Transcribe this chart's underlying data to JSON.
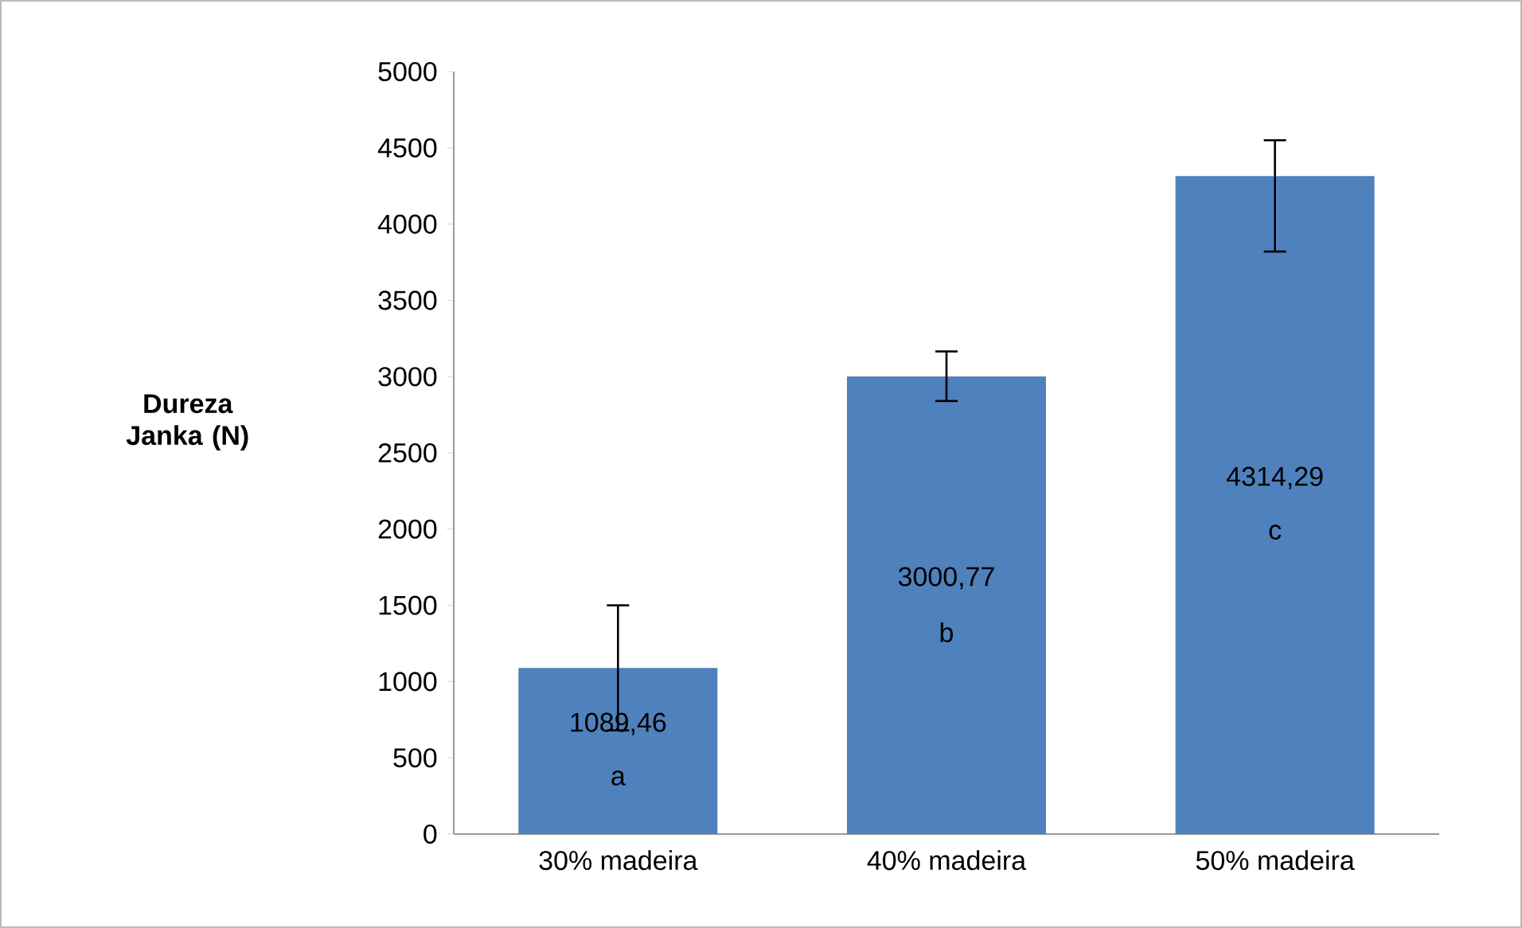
{
  "chart_data": {
    "type": "bar",
    "ylabel": "Dureza Janka (N)",
    "categories": [
      "30% madeira",
      "40% madeira",
      "50% madeira"
    ],
    "values": [
      1089.46,
      3000.77,
      4314.29
    ],
    "value_labels": [
      "1089,46",
      "3000,77",
      "4314,29"
    ],
    "errors": [
      [
        680,
        1500
      ],
      [
        2840,
        3165
      ],
      [
        3820,
        4550
      ]
    ],
    "color": "#4f81bd",
    "ylim": [
      0,
      5000
    ],
    "yticks": [
      0,
      500,
      1000,
      1500,
      2000,
      2500,
      3000,
      3500,
      4000,
      4500,
      5000
    ],
    "annotations": [
      "a",
      "b",
      "c"
    ]
  }
}
